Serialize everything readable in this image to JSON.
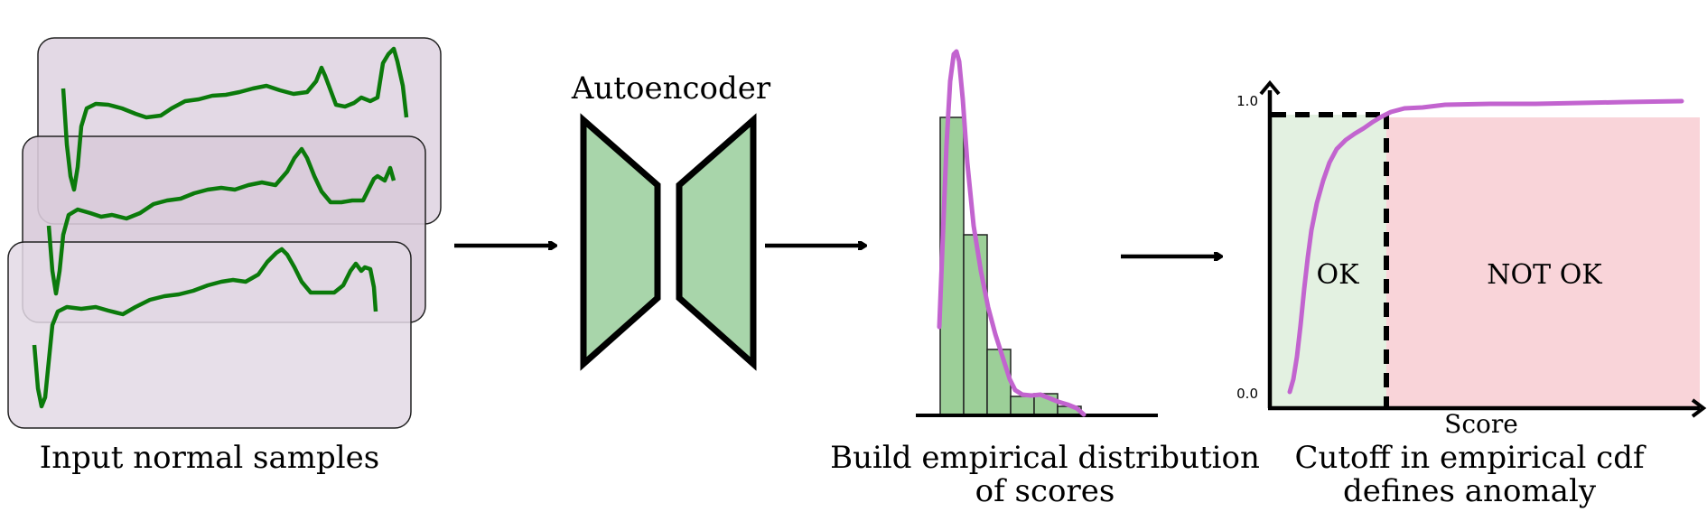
{
  "captions": {
    "input": "Input normal samples",
    "autoencoder": "Autoencoder",
    "distribution_line1": "Build empirical distribution",
    "distribution_line2": "of scores",
    "cdf_line1": "Cutoff in empirical cdf",
    "cdf_line2": "defines anomaly"
  },
  "cdf_panel": {
    "y_top_tick": "1.0",
    "y_bottom_tick": "0.0",
    "x_label": "Score",
    "ok_label": "OK",
    "not_ok_label": "NOT OK"
  },
  "colors": {
    "sample_card_fill": "#e3d9e5",
    "signal_line": "#0b7a0b",
    "encoder_fill": "#a8d5aa",
    "histogram_fill": "#9ccf98",
    "density_curve": "#c264cf",
    "ok_region": "#e3f1e1",
    "not_ok_region": "#f9d4d9"
  }
}
